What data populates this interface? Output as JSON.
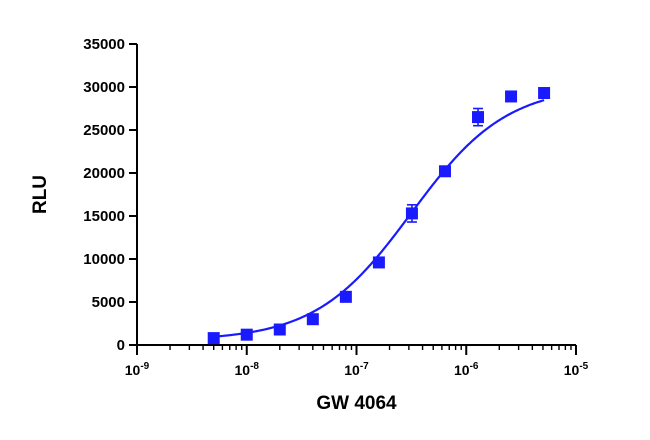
{
  "chart_data": {
    "type": "scatter",
    "title": "",
    "xlabel": "GW 4064",
    "ylabel": "RLU",
    "x_scale": "log",
    "xlim": [
      1e-09,
      1e-05
    ],
    "ylim": [
      0,
      35000
    ],
    "x_ticks": [
      1e-09,
      1e-08,
      1e-07,
      1e-06,
      1e-05
    ],
    "x_tick_labels": [
      {
        "base": "10",
        "exp": "-9"
      },
      {
        "base": "10",
        "exp": "-8"
      },
      {
        "base": "10",
        "exp": "-7"
      },
      {
        "base": "10",
        "exp": "-6"
      },
      {
        "base": "10",
        "exp": "-5"
      }
    ],
    "y_ticks": [
      0,
      5000,
      10000,
      15000,
      20000,
      25000,
      30000,
      35000
    ],
    "y_tick_labels": [
      "0",
      "5000",
      "10000",
      "15000",
      "20000",
      "25000",
      "30000",
      "35000"
    ],
    "grid": false,
    "legend": "none",
    "series": [
      {
        "marker": "square",
        "color": "#1a1aff",
        "x": [
          5e-09,
          1e-08,
          2e-08,
          4e-08,
          8e-08,
          1.6e-07,
          3.2e-07,
          6.4e-07,
          1.28e-06,
          2.56e-06,
          5.12e-06
        ],
        "y": [
          800,
          1200,
          1800,
          3000,
          5600,
          9600,
          15300,
          20200,
          26500,
          28900,
          29300
        ],
        "error": [
          150,
          150,
          150,
          200,
          200,
          300,
          1000,
          400,
          1000,
          400,
          500
        ]
      }
    ],
    "fit_curve": {
      "type": "sigmoidal-dose-response",
      "color": "#1a1aff",
      "bottom": 500,
      "top": 30200,
      "log_ec50": -6.5,
      "hill_slope": 1.0
    }
  }
}
